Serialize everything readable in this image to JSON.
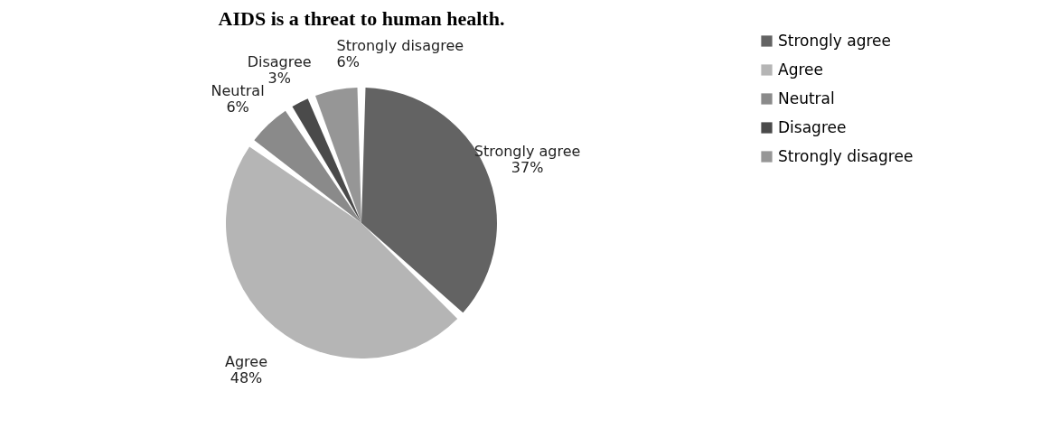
{
  "chart_data": {
    "type": "pie",
    "title": "AIDS is a threat to human health.",
    "categories": [
      "Strongly agree",
      "Agree",
      "Neutral",
      "Disagree",
      "Strongly disagree"
    ],
    "values": [
      37,
      48,
      6,
      3,
      6
    ],
    "value_labels": [
      "37%",
      "48%",
      "6%",
      "3%",
      "6%"
    ],
    "colors": [
      "#636363",
      "#b5b5b5",
      "#8a8a8a",
      "#4a4a4a",
      "#969696"
    ],
    "legend": "right"
  }
}
